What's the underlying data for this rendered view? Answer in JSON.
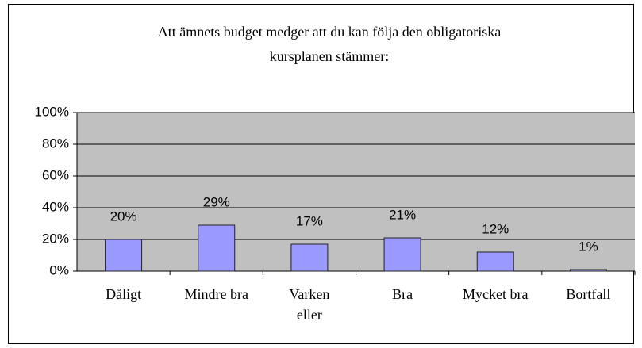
{
  "chart_data": {
    "type": "bar",
    "title": [
      "Att ämnets budget medger att du kan följa den obligatoriska",
      "kursplanen stämmer:"
    ],
    "categories": [
      "Dåligt",
      "Mindre bra",
      "Varken\neller",
      "Bra",
      "Mycket bra",
      "Bortfall"
    ],
    "values": [
      20,
      29,
      17,
      21,
      12,
      1
    ],
    "value_labels": [
      "20%",
      "29%",
      "17%",
      "21%",
      "12%",
      "1%"
    ],
    "color": "#9999ff",
    "ylim": [
      0,
      100
    ],
    "yticks": [
      {
        "value": 0,
        "label": "0%"
      },
      {
        "value": 20,
        "label": "20%"
      },
      {
        "value": 40,
        "label": "40%"
      },
      {
        "value": 60,
        "label": "60%"
      },
      {
        "value": 80,
        "label": "80%"
      },
      {
        "value": 100,
        "label": "100%"
      }
    ],
    "grid": true
  }
}
